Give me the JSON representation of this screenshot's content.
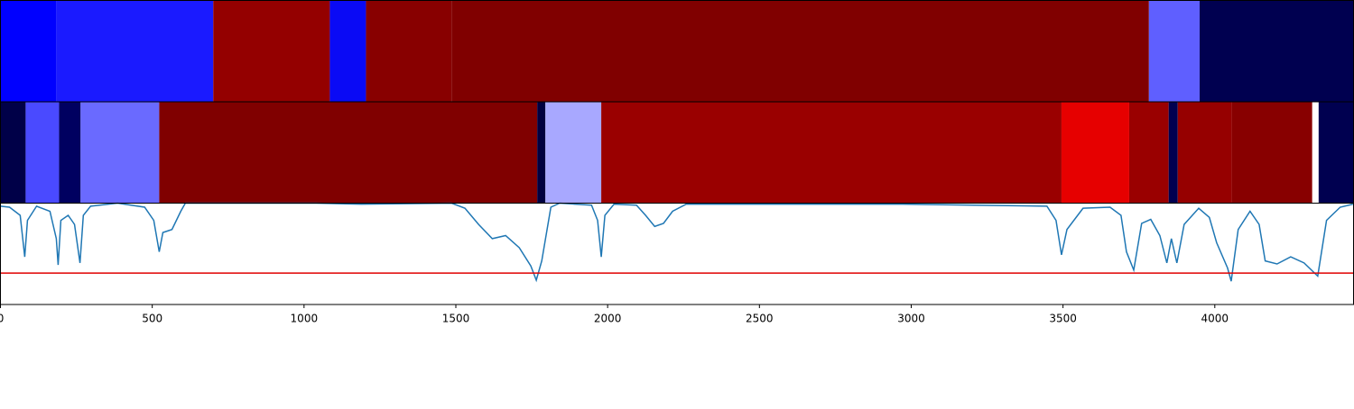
{
  "chart_data": [
    {
      "type": "strip",
      "xlim": [
        0,
        4457
      ],
      "edges": [
        0,
        184,
        701,
        1085,
        1204,
        1486,
        3783,
        3950,
        4457
      ],
      "colors": [
        "#0000ff",
        "#1a1aff",
        "#940000",
        "#0a0af5",
        "#880000",
        "#800000",
        "#5f5fff",
        "#000050"
      ]
    },
    {
      "type": "strip",
      "xlim": [
        0,
        4457
      ],
      "edges": [
        0,
        83,
        193,
        264,
        523,
        1768,
        1795,
        1979,
        3495,
        3718,
        3848,
        3878,
        4056,
        4321,
        4342,
        4457
      ],
      "colors": [
        "#000048",
        "#4a4aff",
        "#000060",
        "#6a6aff",
        "#800000",
        "#000040",
        "#a8a8ff",
        "#9a0000",
        "#e60000",
        "#9a0000",
        "#000050",
        "#960000",
        "#880000",
        "#ffffff",
        "#000050"
      ]
    },
    {
      "type": "line",
      "xlim": [
        0,
        4457
      ],
      "ylim": [
        0,
        1
      ],
      "xticks": [
        0,
        500,
        1000,
        1500,
        2000,
        2500,
        3000,
        3500,
        4000
      ],
      "color": "#1f77b4",
      "threshold": 0.31,
      "threshold_color": "#e00000",
      "x": [
        0,
        30,
        65,
        80,
        89,
        119,
        163,
        184,
        190,
        199,
        223,
        244,
        262,
        273,
        297,
        386,
        475,
        505,
        523,
        535,
        565,
        594,
        609,
        1040,
        1189,
        1486,
        1530,
        1575,
        1620,
        1664,
        1709,
        1747,
        1765,
        1783,
        1813,
        1842,
        1947,
        1967,
        1979,
        1991,
        2021,
        2095,
        2125,
        2155,
        2184,
        2214,
        2259,
        2675,
        2972,
        3447,
        3477,
        3495,
        3513,
        3566,
        3655,
        3691,
        3709,
        3733,
        3759,
        3789,
        3819,
        3842,
        3857,
        3875,
        3899,
        3947,
        3982,
        4006,
        4042,
        4054,
        4077,
        4116,
        4146,
        4166,
        4205,
        4250,
        4294,
        4339,
        4368,
        4413,
        4455
      ],
      "values": [
        0.97,
        0.96,
        0.88,
        0.47,
        0.83,
        0.97,
        0.92,
        0.65,
        0.39,
        0.83,
        0.88,
        0.79,
        0.41,
        0.88,
        0.97,
        1.0,
        0.96,
        0.83,
        0.52,
        0.71,
        0.74,
        0.92,
        1.0,
        1.0,
        0.99,
        1.0,
        0.95,
        0.79,
        0.65,
        0.68,
        0.56,
        0.38,
        0.24,
        0.43,
        0.96,
        1.0,
        0.98,
        0.83,
        0.47,
        0.88,
        0.99,
        0.98,
        0.88,
        0.77,
        0.8,
        0.92,
        0.99,
        0.99,
        0.99,
        0.97,
        0.83,
        0.49,
        0.74,
        0.95,
        0.96,
        0.88,
        0.52,
        0.34,
        0.8,
        0.84,
        0.68,
        0.41,
        0.65,
        0.41,
        0.79,
        0.95,
        0.86,
        0.61,
        0.36,
        0.23,
        0.74,
        0.92,
        0.79,
        0.43,
        0.4,
        0.47,
        0.41,
        0.28,
        0.83,
        0.96,
        0.99
      ]
    }
  ]
}
